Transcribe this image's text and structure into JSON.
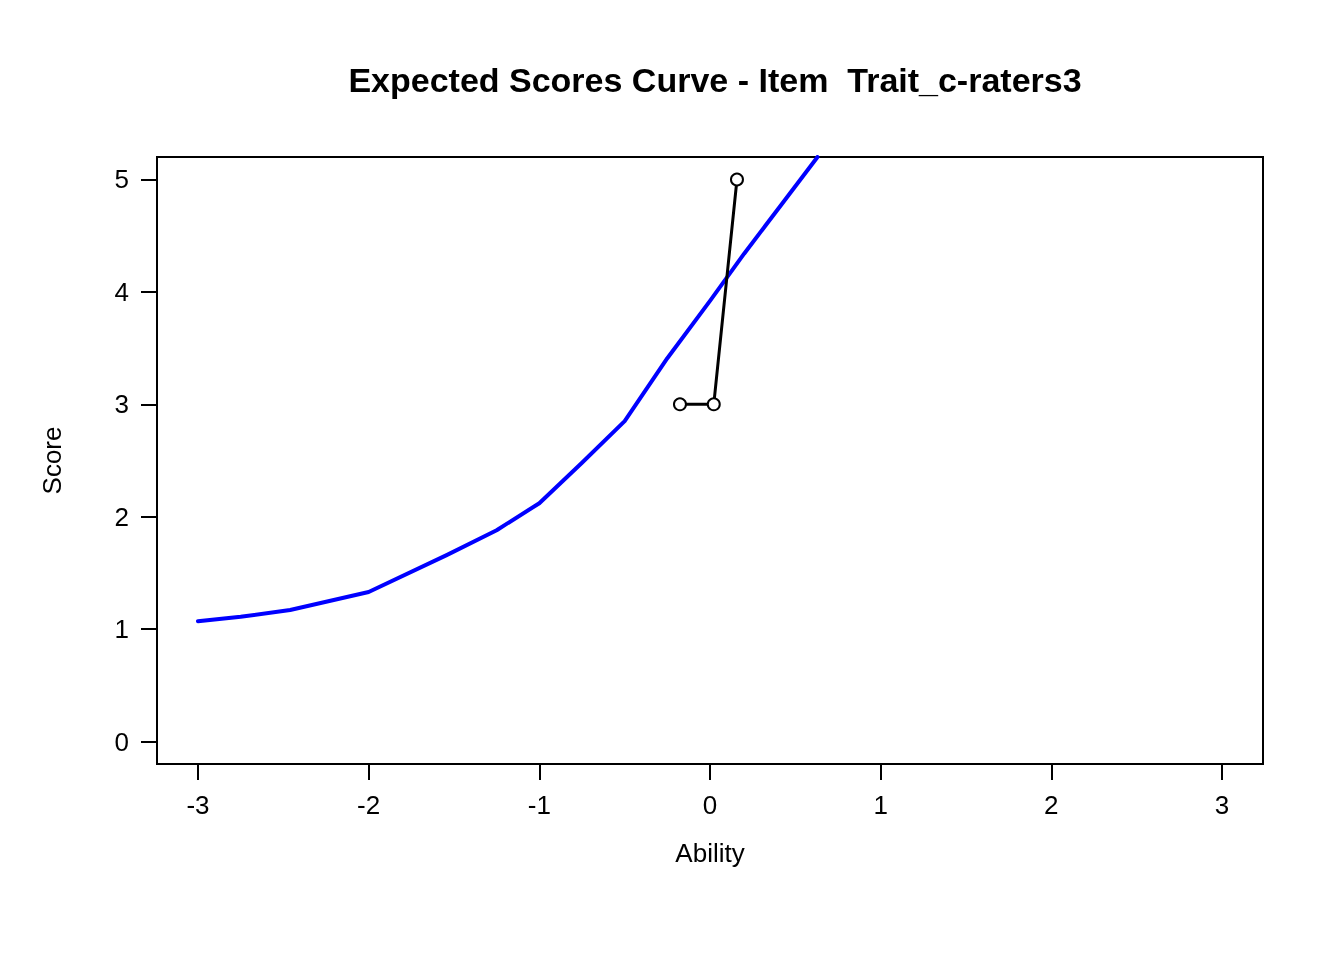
{
  "chart_data": {
    "type": "line",
    "title": "Expected Scores Curve - Item  Trait_c-raters3",
    "xlabel": "Ability",
    "ylabel": "Score",
    "xlim": [
      -3.24,
      3.24
    ],
    "xticks": [
      -3,
      -2,
      -1,
      0,
      1,
      2,
      3
    ],
    "ylim": [
      -0.2,
      5.2
    ],
    "yticks": [
      0,
      1,
      2,
      3,
      4,
      5
    ],
    "grid": false,
    "series": [
      {
        "color": "#0000ff",
        "marker": "none",
        "x": [
          -3,
          -2.75,
          -2.46,
          -2,
          -1.54,
          -1.25,
          -1,
          -0.75,
          -0.5,
          -0.25,
          0,
          0.2,
          0.42,
          0.63
        ],
        "values": [
          1.07,
          1.11,
          1.17,
          1.33,
          1.66,
          1.88,
          2.12,
          2.48,
          2.85,
          3.41,
          3.92,
          4.34,
          4.78,
          5.2
        ]
      },
      {
        "color": "#000000",
        "marker": "circle",
        "x": [
          -0.176,
          0.022,
          0.158
        ],
        "values": [
          3,
          3,
          5
        ]
      }
    ]
  }
}
